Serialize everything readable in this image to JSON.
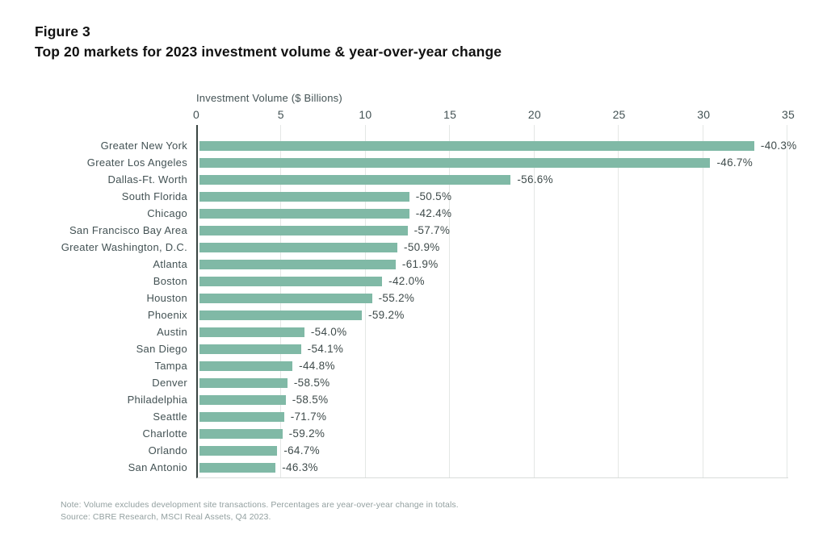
{
  "figure": {
    "number": "Figure 3",
    "title": "Top 20 markets for 2023 investment volume & year-over-year change"
  },
  "chart_data": {
    "type": "bar",
    "orientation": "horizontal",
    "xlabel": "Investment Volume ($ Billions)",
    "xlim": [
      0,
      35
    ],
    "xticks": [
      0,
      5,
      10,
      15,
      20,
      25,
      30,
      35
    ],
    "grid": "vertical",
    "bar_color": "#80b9a6",
    "categories": [
      "Greater New York",
      "Greater Los Angeles",
      "Dallas-Ft. Worth",
      "South Florida",
      "Chicago",
      "San Francisco Bay Area",
      "Greater Washington, D.C.",
      "Atlanta",
      "Boston",
      "Houston",
      "Phoenix",
      "Austin",
      "San Diego",
      "Tampa",
      "Denver",
      "Philadelphia",
      "Seattle",
      "Charlotte",
      "Orlando",
      "San Antonio"
    ],
    "series": [
      {
        "name": "2023 investment volume ($ billions, estimated from bar lengths)",
        "values": [
          32.8,
          30.2,
          18.4,
          12.4,
          12.4,
          12.3,
          11.7,
          11.6,
          10.8,
          10.2,
          9.6,
          6.2,
          6.0,
          5.5,
          5.2,
          5.1,
          5.0,
          4.9,
          4.6,
          4.5
        ]
      },
      {
        "name": "Year-over-year change",
        "labels": [
          "-40.3%",
          "-46.7%",
          "-56.6%",
          "-50.5%",
          "-42.4%",
          "-57.7%",
          "-50.9%",
          "-61.9%",
          "-42.0%",
          "-55.2%",
          "-59.2%",
          "-54.0%",
          "-54.1%",
          "-44.8%",
          "-58.5%",
          "-58.5%",
          "-71.7%",
          "-59.2%",
          "-64.7%",
          "-46.3%"
        ]
      }
    ]
  },
  "footnote": {
    "note": "Note: Volume excludes development site transactions. Percentages are year-over-year change in totals.",
    "source": "Source: CBRE Research, MSCI Real Assets, Q4 2023."
  }
}
